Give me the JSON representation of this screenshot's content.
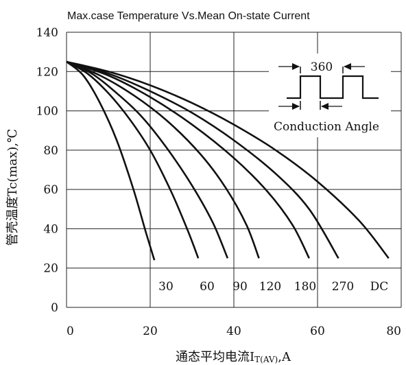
{
  "chart_data": {
    "type": "line",
    "title": "Max.case Temperature Vs.Mean On-state Current",
    "xlabel": "通态平均电流I",
    "xlabel_sub": "T(AV)",
    "xlabel_unit": ",A",
    "ylabel": "管壳温度Tc(max),℃",
    "xlim": [
      0,
      80
    ],
    "ylim": [
      0,
      140
    ],
    "xticks": [
      "0",
      "20",
      "40",
      "60",
      "80"
    ],
    "yticks": [
      "0",
      "20",
      "40",
      "60",
      "80",
      "100",
      "120",
      "140"
    ],
    "grid": true,
    "series": [
      {
        "name": "30",
        "x": [
          0,
          4,
          8,
          12,
          16,
          19,
          21
        ],
        "y": [
          125,
          118,
          104,
          85,
          60,
          38,
          24
        ]
      },
      {
        "name": "60",
        "x": [
          0,
          5,
          10,
          15,
          20,
          25,
          29,
          31.5
        ],
        "y": [
          125,
          119,
          109,
          96,
          80,
          59,
          39,
          25
        ]
      },
      {
        "name": "90",
        "x": [
          0,
          6,
          12,
          18,
          24,
          30,
          35,
          38.5
        ],
        "y": [
          125,
          119,
          109,
          97,
          81,
          62,
          43,
          25
        ]
      },
      {
        "name": "120",
        "x": [
          0,
          8,
          16,
          24,
          32,
          38,
          43,
          46
        ],
        "y": [
          125,
          118,
          108,
          95,
          78,
          61,
          42,
          25
        ]
      },
      {
        "name": "180",
        "x": [
          0,
          10,
          20,
          30,
          40,
          48,
          54,
          58
        ],
        "y": [
          125,
          118,
          107,
          93,
          76,
          59,
          42,
          25
        ]
      },
      {
        "name": "270",
        "x": [
          0,
          10,
          20,
          30,
          40,
          50,
          58,
          65
        ],
        "y": [
          125,
          119,
          110,
          99,
          85,
          68,
          50,
          25
        ]
      },
      {
        "name": "DC",
        "x": [
          0,
          10,
          20,
          30,
          40,
          50,
          60,
          70,
          77
        ],
        "y": [
          125,
          120,
          113,
          104,
          93,
          80,
          64,
          44,
          25
        ]
      }
    ],
    "curve_labels": [
      "30",
      "60",
      "90",
      "120",
      "180",
      "270",
      "DC"
    ],
    "inset": {
      "period_label": "360",
      "caption": "Conduction Angle"
    }
  }
}
